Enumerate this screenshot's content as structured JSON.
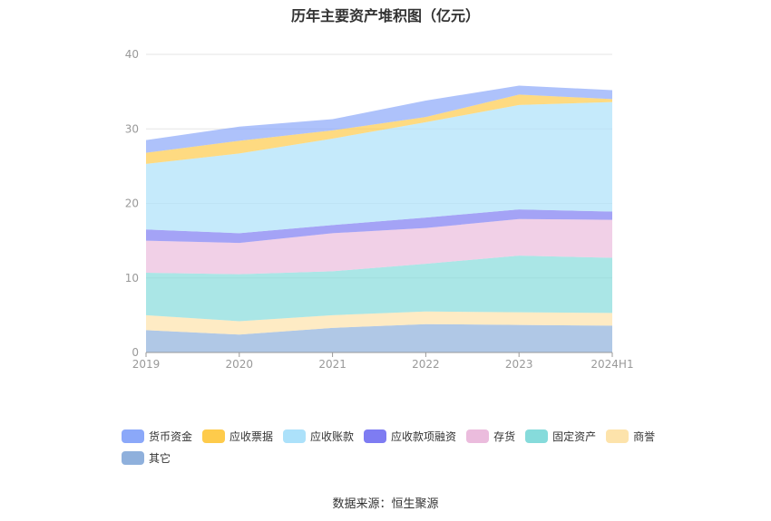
{
  "title": "历年主要资产堆积图（亿元）",
  "source": "数据来源：恒生聚源",
  "chart_data": {
    "type": "area",
    "stacked": true,
    "categories": [
      "2019",
      "2020",
      "2021",
      "2022",
      "2023",
      "2024H1"
    ],
    "ylim": [
      0,
      40
    ],
    "yticks": [
      0,
      10,
      20,
      30,
      40
    ],
    "grid": true,
    "legend_position": "bottom",
    "series": [
      {
        "name": "其它",
        "color": "#8fb0dc",
        "values": [
          3.0,
          2.4,
          3.3,
          3.8,
          3.7,
          3.6
        ]
      },
      {
        "name": "商誉",
        "color": "#fde3ab",
        "values": [
          2.0,
          1.8,
          1.7,
          1.7,
          1.7,
          1.7
        ]
      },
      {
        "name": "固定资产",
        "color": "#86dbdb",
        "values": [
          5.7,
          6.3,
          5.9,
          6.4,
          7.6,
          7.4
        ]
      },
      {
        "name": "存货",
        "color": "#ebbcdd",
        "values": [
          4.3,
          4.2,
          5.1,
          4.8,
          4.9,
          5.1
        ]
      },
      {
        "name": "应收款项融资",
        "color": "#7e7cf2",
        "values": [
          1.5,
          1.3,
          1.1,
          1.4,
          1.3,
          1.1
        ]
      },
      {
        "name": "应收账款",
        "color": "#ace1fa",
        "values": [
          8.8,
          10.7,
          11.6,
          12.8,
          14.0,
          14.7
        ]
      },
      {
        "name": "应收票据",
        "color": "#fecb4b",
        "values": [
          1.5,
          1.7,
          1.1,
          0.7,
          1.4,
          0.4
        ]
      },
      {
        "name": "货币资金",
        "color": "#8ba8f9",
        "values": [
          1.7,
          1.9,
          1.5,
          2.2,
          1.2,
          1.2
        ]
      }
    ],
    "legend_order": [
      "货币资金",
      "应收票据",
      "应收账款",
      "应收款项融资",
      "存货",
      "固定资产",
      "商誉",
      "其它"
    ]
  }
}
